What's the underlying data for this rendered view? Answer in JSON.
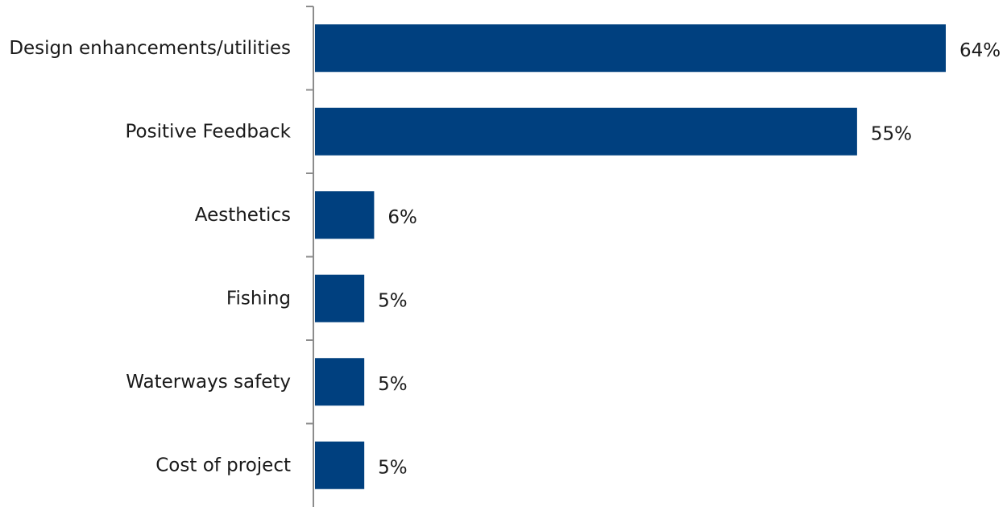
{
  "chart_data": {
    "type": "bar",
    "orientation": "horizontal",
    "categories": [
      "Design enhancements/utilities",
      "Positive Feedback",
      "Aesthetics",
      "Fishing",
      "Waterways safety",
      "Cost of project"
    ],
    "values": [
      64,
      55,
      6,
      5,
      5,
      5
    ],
    "value_labels": [
      "64%",
      "55%",
      "6%",
      "5%",
      "5%",
      "5%"
    ],
    "unit": "%",
    "xlim": [
      0,
      64
    ],
    "grid": false,
    "legend": "none",
    "bar_color": "#00407F",
    "axis_color": "#8c8c8c",
    "title": "",
    "xlabel": "",
    "ylabel": ""
  }
}
